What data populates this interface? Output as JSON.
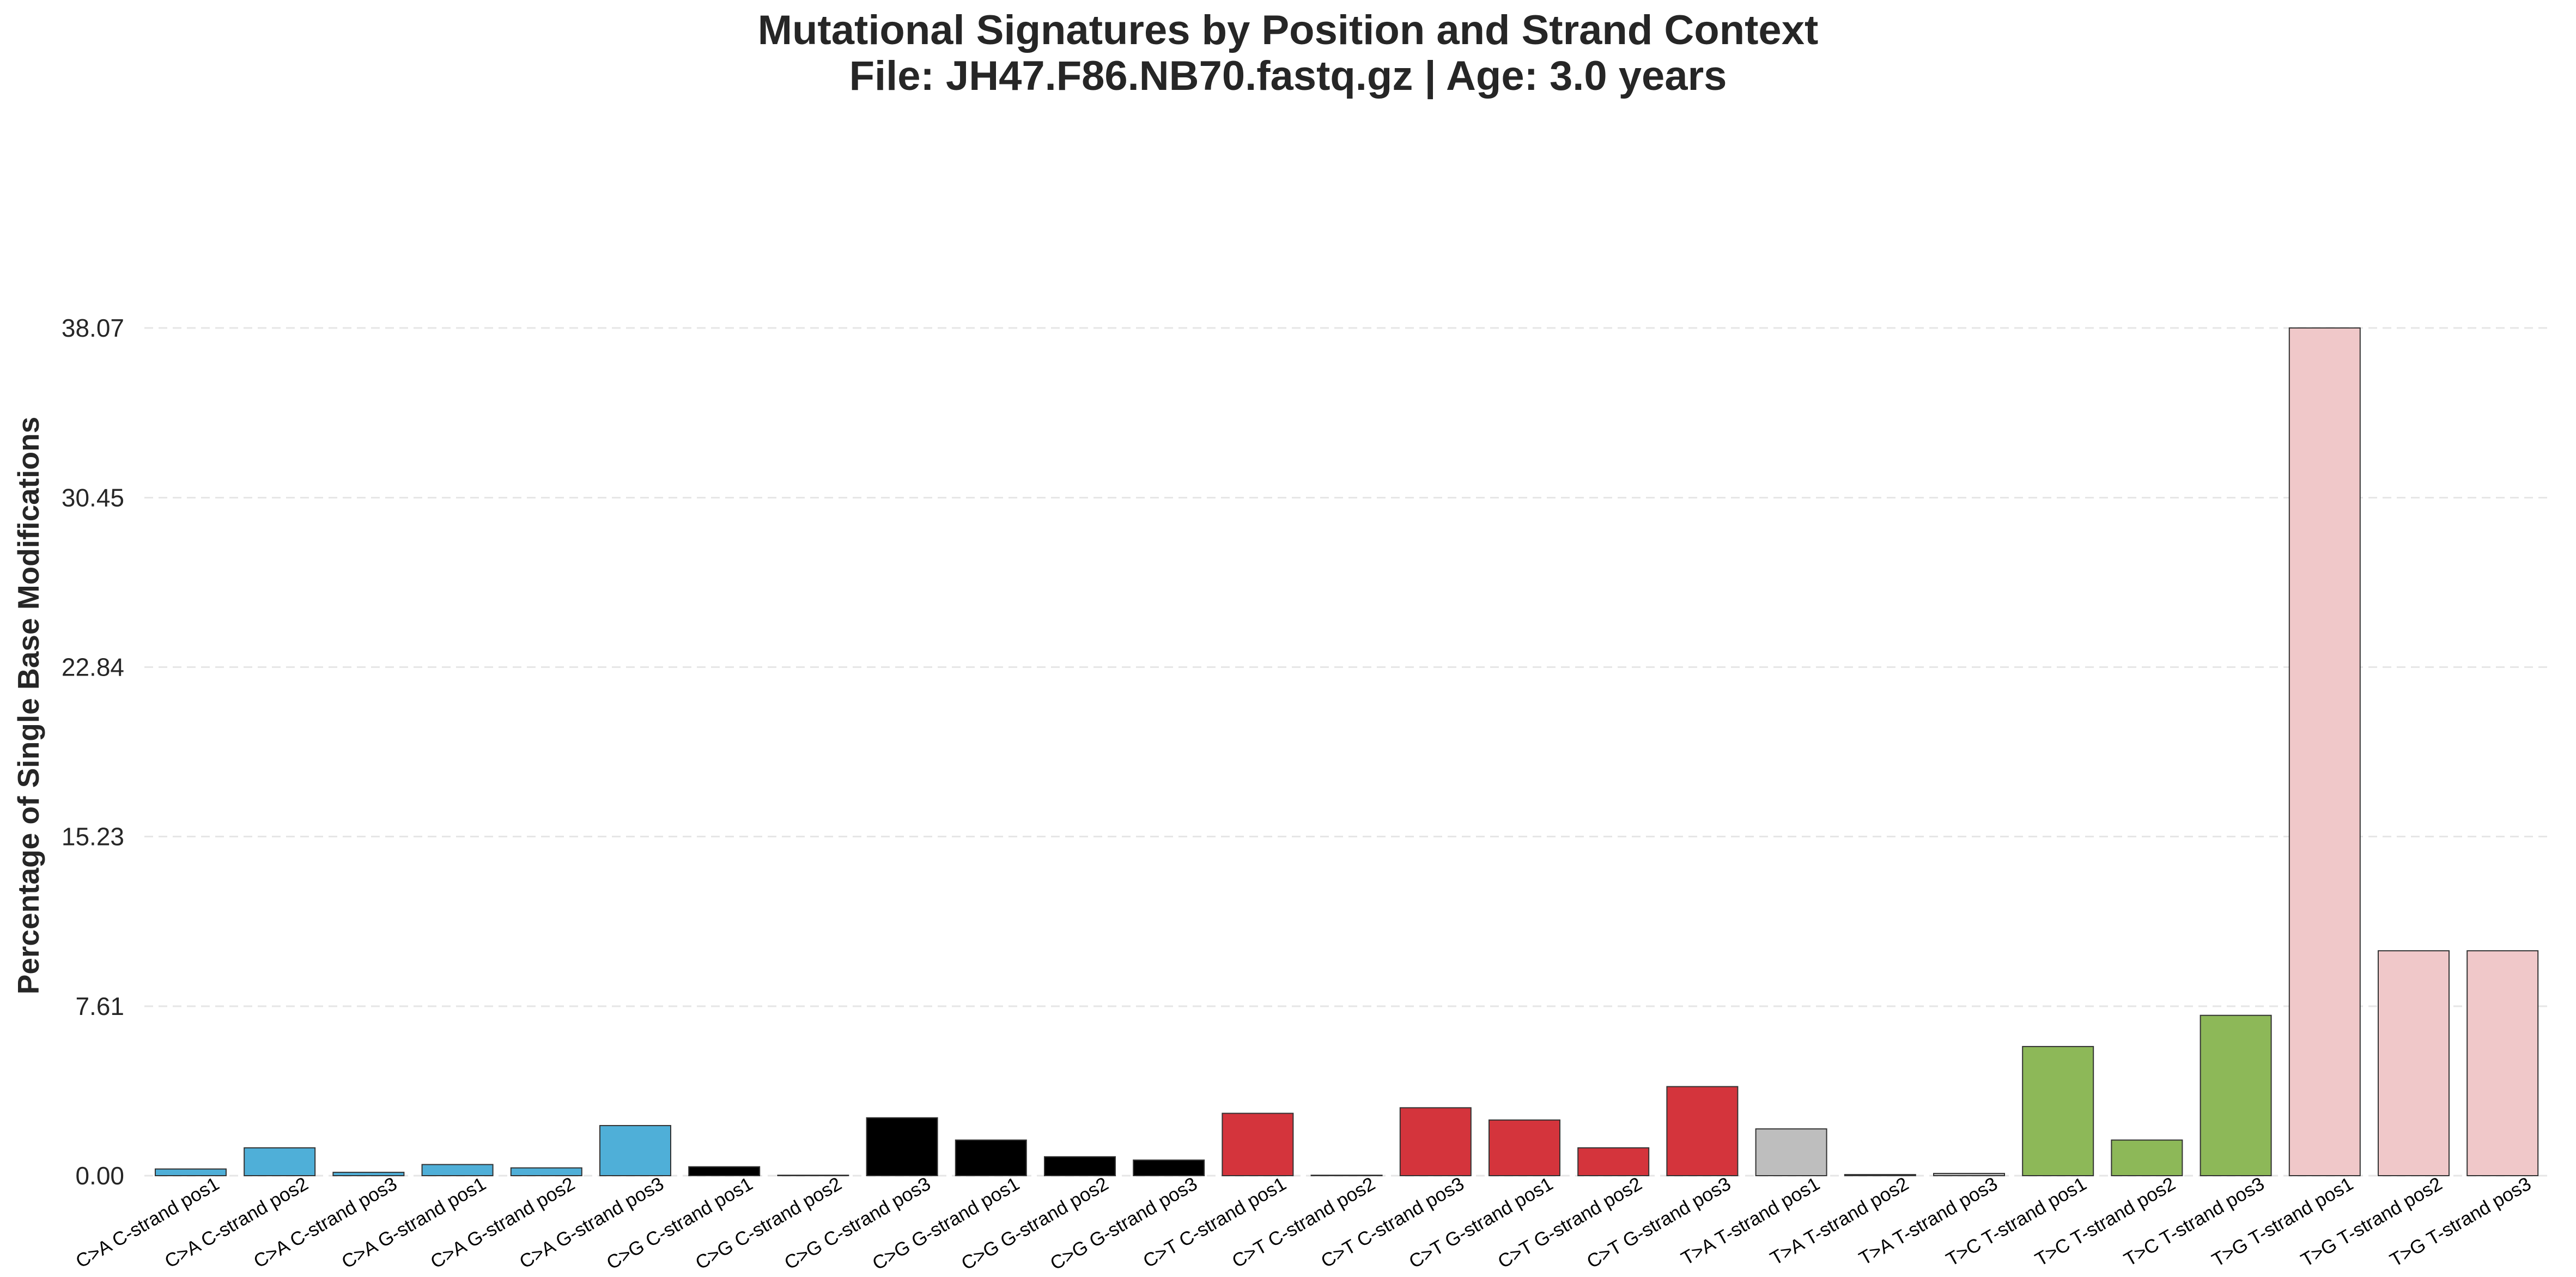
{
  "chart_data": {
    "type": "bar",
    "title": "Mutational Signatures by Position and Strand Context\nFile: JH47.F86.NB70.fastq.gz | Age: 3.0 years",
    "xlabel": "",
    "ylabel": "Percentage of Single Base Modifications",
    "ylim": [
      0,
      40.5
    ],
    "yticks": [
      "0.00",
      "7.61",
      "15.23",
      "22.84",
      "30.45",
      "38.07"
    ],
    "ytick_values": [
      0,
      7.61,
      15.23,
      22.84,
      30.45,
      38.07
    ],
    "grid": "y-dashed",
    "categories": [
      "C>A C-strand pos1",
      "C>A C-strand pos2",
      "C>A C-strand pos3",
      "C>A G-strand pos1",
      "C>A G-strand pos2",
      "C>A G-strand pos3",
      "C>G C-strand pos1",
      "C>G C-strand pos2",
      "C>G C-strand pos3",
      "C>G G-strand pos1",
      "C>G G-strand pos2",
      "C>G G-strand pos3",
      "C>T C-strand pos1",
      "C>T C-strand pos2",
      "C>T C-strand pos3",
      "C>T G-strand pos1",
      "C>T G-strand pos2",
      "C>T G-strand pos3",
      "T>A T-strand pos1",
      "T>A T-strand pos2",
      "T>A T-strand pos3",
      "T>C T-strand pos1",
      "T>C T-strand pos2",
      "T>C T-strand pos3",
      "T>G T-strand pos1",
      "T>G T-strand pos2",
      "T>G T-strand pos3"
    ],
    "values": [
      0.3,
      1.25,
      0.15,
      0.5,
      0.35,
      2.25,
      0.4,
      0.02,
      2.6,
      1.6,
      0.85,
      0.7,
      2.8,
      0.02,
      3.05,
      2.5,
      1.25,
      4.0,
      2.1,
      0.05,
      0.1,
      5.8,
      1.6,
      7.2,
      38.07,
      10.1,
      10.1
    ],
    "colors": [
      "#4FAFD8",
      "#4FAFD8",
      "#4FAFD8",
      "#4FAFD8",
      "#4FAFD8",
      "#4FAFD8",
      "#000000",
      "#000000",
      "#000000",
      "#000000",
      "#000000",
      "#000000",
      "#D4343C",
      "#D4343C",
      "#D4343C",
      "#D4343C",
      "#D4343C",
      "#D4343C",
      "#BEBEBE",
      "#BEBEBE",
      "#BEBEBE",
      "#8DB858",
      "#8DB858",
      "#8DB858",
      "#F0C8C9",
      "#F0C8C9",
      "#F0C8C9"
    ]
  }
}
